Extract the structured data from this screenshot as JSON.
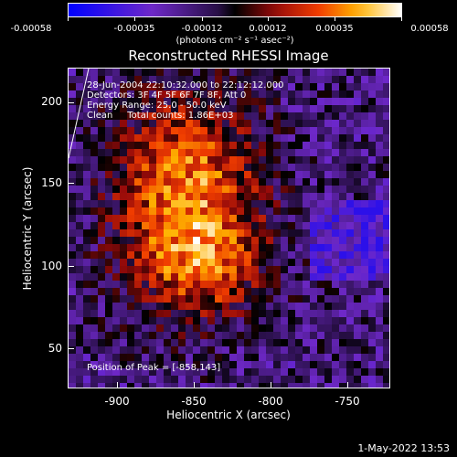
{
  "colorbar": {
    "tick_labels": [
      "-0.00058",
      "-0.00035",
      "-0.00012",
      "0.00012",
      "0.00035",
      "0.00058"
    ],
    "unit_label": "(photons cm⁻² s⁻¹ asec⁻²)",
    "range": [
      -0.00058,
      0.00058
    ]
  },
  "title": "Reconstructed RHESSI Image",
  "info": {
    "time": "28-Jun-2004 22:10:32.000 to 22:12:12.000",
    "detectors": "Detectors: 3F 4F 5F 6F 7F 8F, Att 0",
    "energy": "Energy Range: 25.0 - 50.0 keV",
    "clean": "Clean     Total counts: 1.86E+03"
  },
  "peak": "Position of Peak = [-858,143]",
  "axes": {
    "x_title": "Heliocentric X (arcsec)",
    "y_title": "Heliocentric Y (arcsec)",
    "x_ticks": [
      "-900",
      "-850",
      "-800",
      "-750"
    ],
    "y_ticks": [
      "200",
      "150",
      "100",
      "50"
    ]
  },
  "datestamp": "1-May-2022 13:53",
  "colors": {
    "background": "#000000",
    "foreground": "#ffffff"
  }
}
